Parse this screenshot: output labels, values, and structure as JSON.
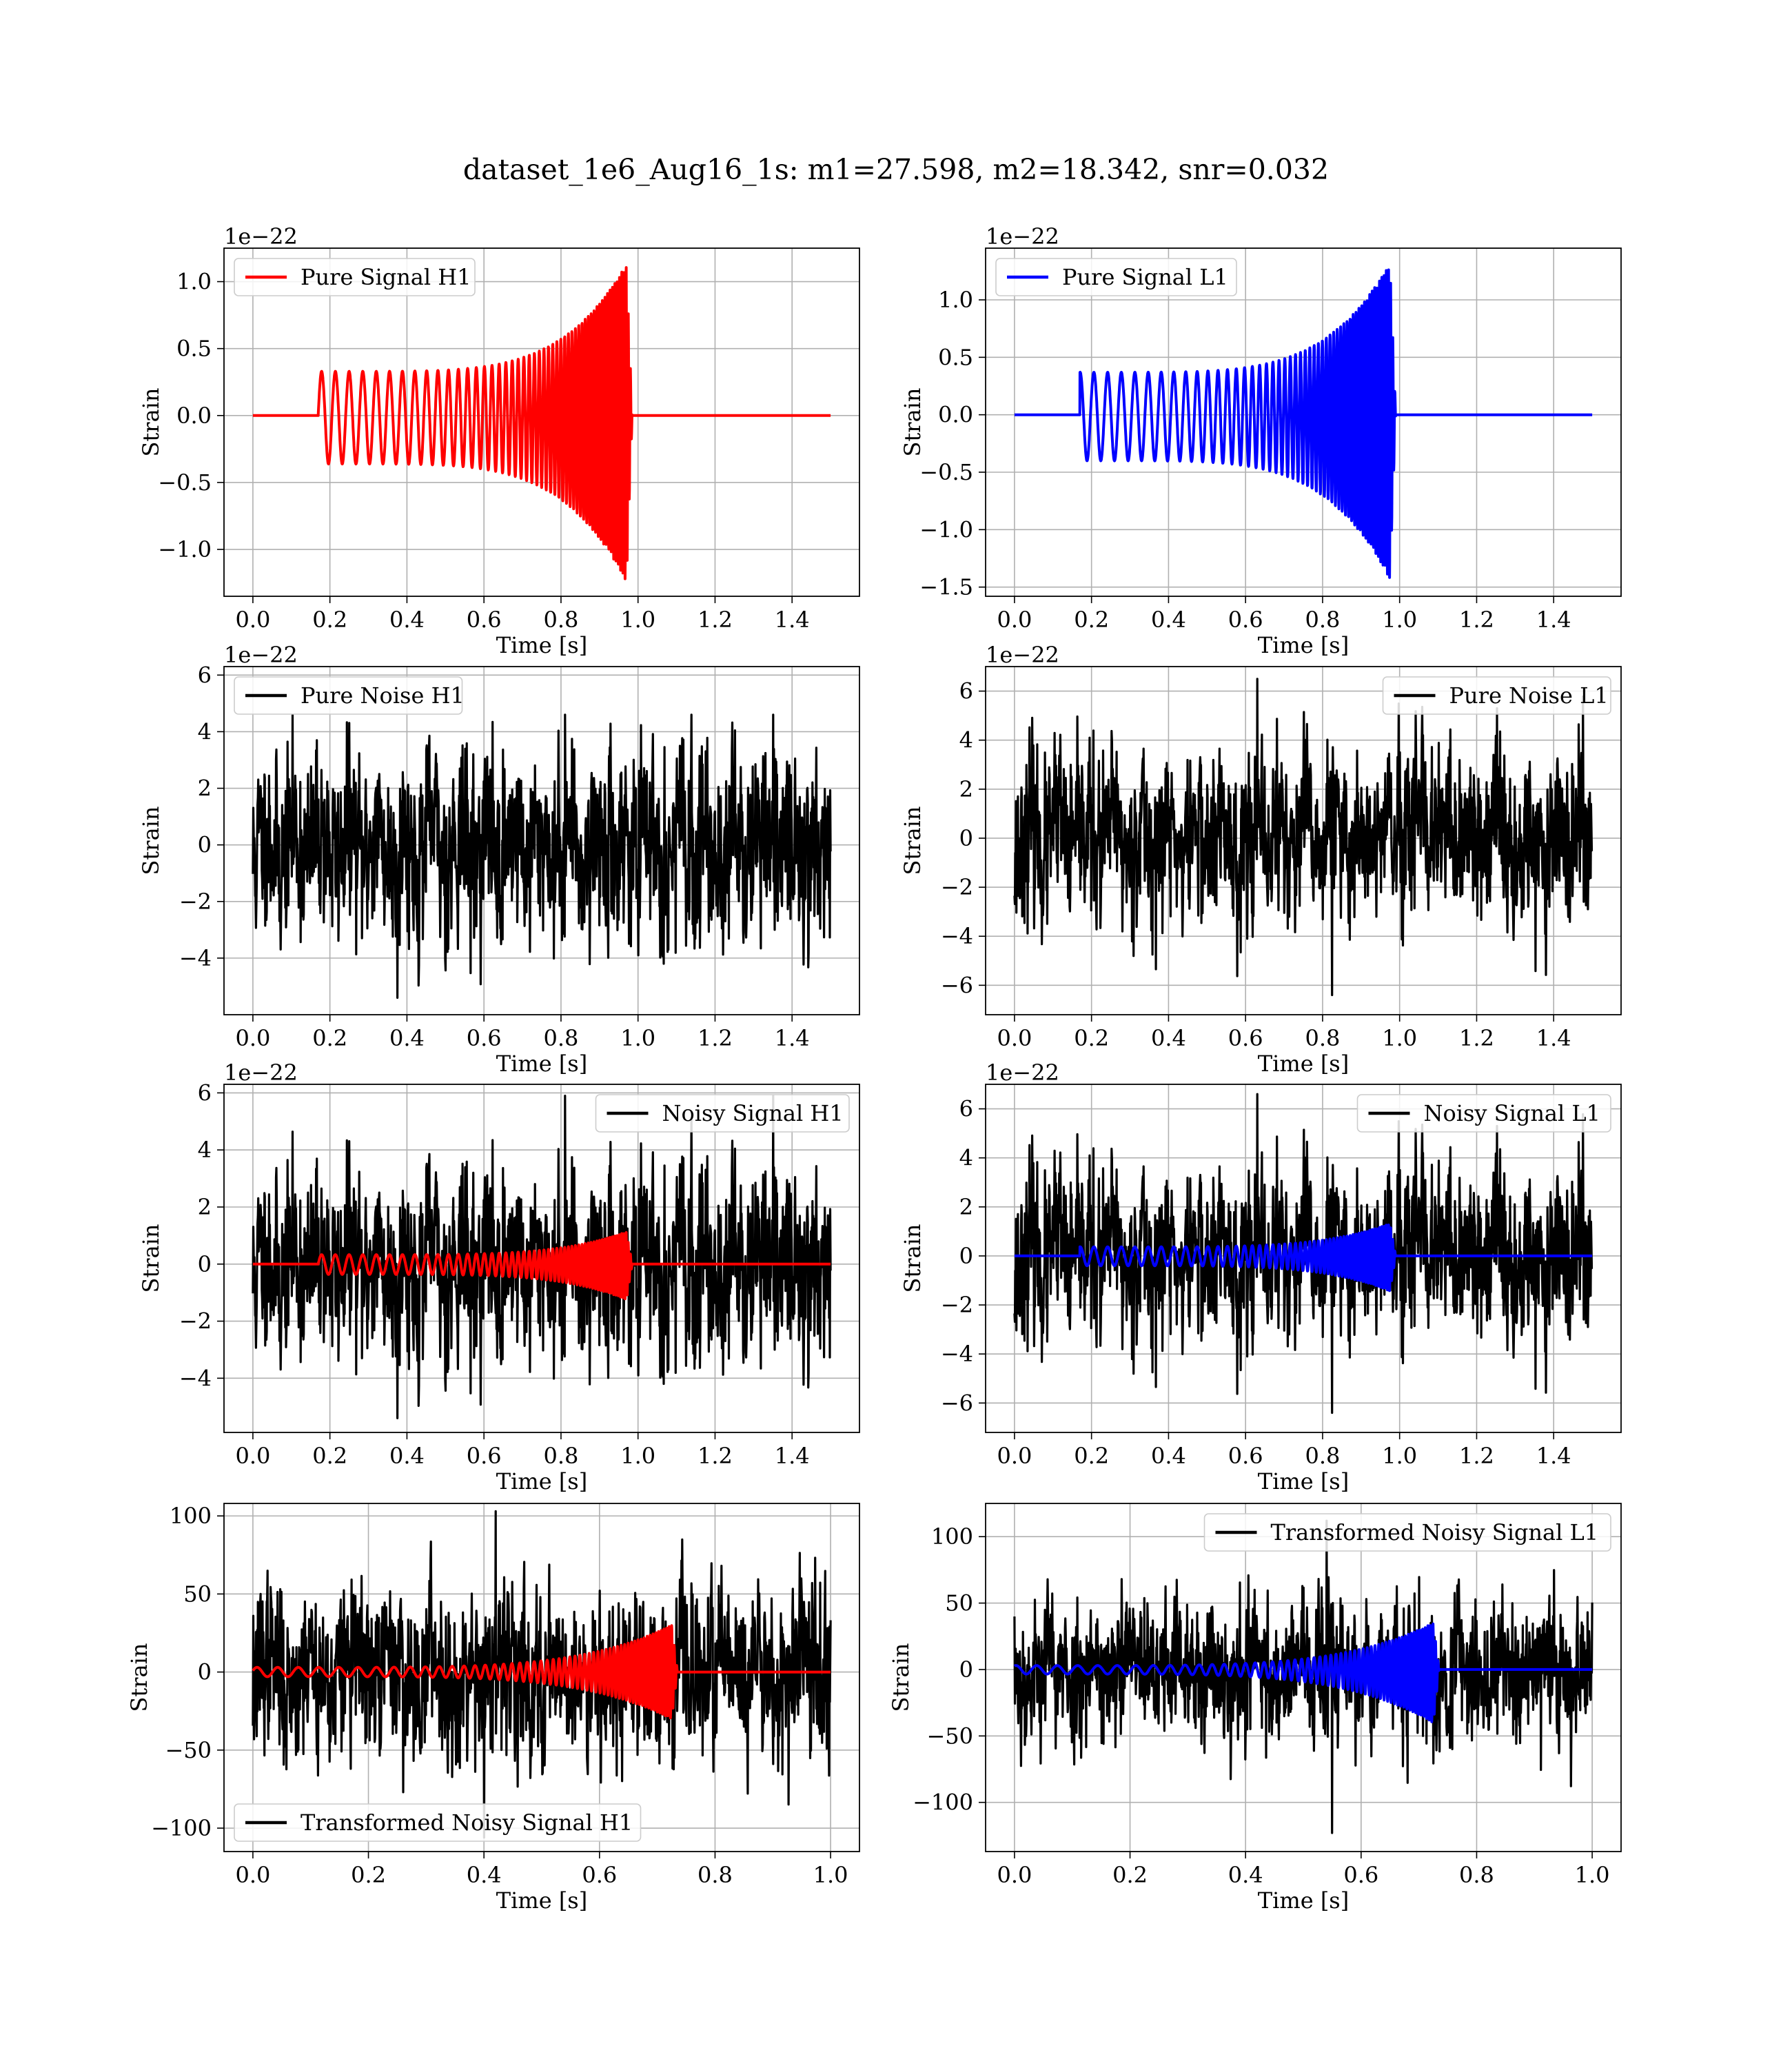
{
  "figure": {
    "title": "dataset_1e6_Aug16_1s: m1=27.598, m2=18.342, snr=0.032"
  },
  "colors": {
    "h1_signal": "#ff0000",
    "l1_signal": "#0000ff",
    "noise": "#000000",
    "grid": "#b0b0b0"
  },
  "chart_data": [
    {
      "id": "pure-signal-h1",
      "type": "line",
      "xlabel": "Time [s]",
      "ylabel": "Strain",
      "offset_text": "1e−22",
      "xlim": [
        -0.075,
        1.575
      ],
      "ylim": [
        -1.35,
        1.25
      ],
      "xticks": [
        0.0,
        0.2,
        0.4,
        0.6,
        0.8,
        1.0,
        1.2,
        1.4
      ],
      "xtick_labels": [
        "0.0",
        "0.2",
        "0.4",
        "0.6",
        "0.8",
        "1.0",
        "1.2",
        "1.4"
      ],
      "yticks": [
        1.0,
        0.5,
        0.0,
        -0.5,
        -1.0
      ],
      "ytick_labels": [
        "1.0",
        "0.5",
        "0.0",
        "−0.5",
        "−1.0"
      ],
      "legend": {
        "label": "Pure Signal H1",
        "position": "upper left",
        "color": "#ff0000"
      },
      "series": [
        {
          "name": "Pure Signal H1",
          "color": "#ff0000",
          "kind": "chirp",
          "x_range": [
            0,
            1.5
          ],
          "t_start": 0.17,
          "t_merge": 0.97,
          "t_end": 0.985,
          "amp_start": 0.33,
          "amp_peak": 1.13,
          "amp_min": -1.24,
          "f_start": 28,
          "f_end": 180,
          "phase": 0
        }
      ]
    },
    {
      "id": "pure-signal-l1",
      "type": "line",
      "xlabel": "Time [s]",
      "ylabel": "Strain",
      "offset_text": "1e−22",
      "xlim": [
        -0.075,
        1.575
      ],
      "ylim": [
        -1.58,
        1.45
      ],
      "xticks": [
        0.0,
        0.2,
        0.4,
        0.6,
        0.8,
        1.0,
        1.2,
        1.4
      ],
      "xtick_labels": [
        "0.0",
        "0.2",
        "0.4",
        "0.6",
        "0.8",
        "1.0",
        "1.2",
        "1.4"
      ],
      "yticks": [
        1.0,
        0.5,
        0.0,
        -0.5,
        -1.0,
        -1.5
      ],
      "ytick_labels": [
        "1.0",
        "0.5",
        "0.0",
        "−0.5",
        "−1.0",
        "−1.5"
      ],
      "legend": {
        "label": "Pure Signal L1",
        "position": "upper left",
        "color": "#0000ff"
      },
      "series": [
        {
          "name": "Pure Signal L1",
          "color": "#0000ff",
          "kind": "chirp",
          "x_range": [
            0,
            1.5
          ],
          "t_start": 0.17,
          "t_merge": 0.975,
          "t_end": 0.99,
          "amp_start": 0.37,
          "amp_peak": 1.32,
          "amp_min": -1.43,
          "f_start": 28,
          "f_end": 180,
          "phase": 1.4
        }
      ]
    },
    {
      "id": "pure-noise-h1",
      "type": "line",
      "xlabel": "Time [s]",
      "ylabel": "Strain",
      "offset_text": "1e−22",
      "xlim": [
        -0.075,
        1.575
      ],
      "ylim": [
        -6.0,
        6.3
      ],
      "xticks": [
        0.0,
        0.2,
        0.4,
        0.6,
        0.8,
        1.0,
        1.2,
        1.4
      ],
      "xtick_labels": [
        "0.0",
        "0.2",
        "0.4",
        "0.6",
        "0.8",
        "1.0",
        "1.2",
        "1.4"
      ],
      "yticks": [
        6,
        4,
        2,
        0,
        -2,
        -4
      ],
      "ytick_labels": [
        "6",
        "4",
        "2",
        "0",
        "−2",
        "−4"
      ],
      "legend": {
        "label": "Pure Noise H1",
        "position": "upper left",
        "color": "#000000"
      },
      "series": [
        {
          "name": "Pure Noise H1",
          "color": "#000000",
          "kind": "noise",
          "x_range": [
            0,
            1.5
          ],
          "amp": 1.7,
          "max": 4.6,
          "min": -5.4,
          "seed": 11
        }
      ]
    },
    {
      "id": "pure-noise-l1",
      "type": "line",
      "xlabel": "Time [s]",
      "ylabel": "Strain",
      "offset_text": "1e−22",
      "xlim": [
        -0.075,
        1.575
      ],
      "ylim": [
        -7.2,
        7.0
      ],
      "xticks": [
        0.0,
        0.2,
        0.4,
        0.6,
        0.8,
        1.0,
        1.2,
        1.4
      ],
      "xtick_labels": [
        "0.0",
        "0.2",
        "0.4",
        "0.6",
        "0.8",
        "1.0",
        "1.2",
        "1.4"
      ],
      "yticks": [
        6,
        4,
        2,
        0,
        -2,
        -4,
        -6
      ],
      "ytick_labels": [
        "6",
        "4",
        "2",
        "0",
        "−2",
        "−4",
        "−6"
      ],
      "legend": {
        "label": "Pure Noise L1",
        "position": "upper right",
        "color": "#000000"
      },
      "series": [
        {
          "name": "Pure Noise L1",
          "color": "#000000",
          "kind": "noise",
          "x_range": [
            0,
            1.5
          ],
          "amp": 1.8,
          "max": 6.5,
          "min": -6.4,
          "seed": 23
        }
      ]
    },
    {
      "id": "noisy-signal-h1",
      "type": "line",
      "xlabel": "Time [s]",
      "ylabel": "Strain",
      "offset_text": "1e−22",
      "xlim": [
        -0.075,
        1.575
      ],
      "ylim": [
        -5.9,
        6.3
      ],
      "xticks": [
        0.0,
        0.2,
        0.4,
        0.6,
        0.8,
        1.0,
        1.2,
        1.4
      ],
      "xtick_labels": [
        "0.0",
        "0.2",
        "0.4",
        "0.6",
        "0.8",
        "1.0",
        "1.2",
        "1.4"
      ],
      "yticks": [
        6,
        4,
        2,
        0,
        -2,
        -4
      ],
      "ytick_labels": [
        "6",
        "4",
        "2",
        "0",
        "−2",
        "−4"
      ],
      "legend": {
        "label": "Noisy Signal H1",
        "position": "upper right",
        "color": "#000000"
      },
      "series": [
        {
          "name": "Noisy Signal H1",
          "color": "#000000",
          "kind": "noise",
          "x_range": [
            0,
            1.5
          ],
          "amp": 1.7,
          "max": 5.9,
          "min": -5.4,
          "seed": 11
        },
        {
          "color": "#ff0000",
          "kind": "chirp",
          "x_range": [
            0,
            1.5
          ],
          "t_start": 0.17,
          "t_merge": 0.97,
          "t_end": 0.985,
          "amp_start": 0.33,
          "amp_peak": 1.13,
          "amp_min": -1.24,
          "f_start": 28,
          "f_end": 180,
          "phase": 0
        }
      ]
    },
    {
      "id": "noisy-signal-l1",
      "type": "line",
      "xlabel": "Time [s]",
      "ylabel": "Strain",
      "offset_text": "1e−22",
      "xlim": [
        -0.075,
        1.575
      ],
      "ylim": [
        -7.2,
        7.0
      ],
      "xticks": [
        0.0,
        0.2,
        0.4,
        0.6,
        0.8,
        1.0,
        1.2,
        1.4
      ],
      "xtick_labels": [
        "0.0",
        "0.2",
        "0.4",
        "0.6",
        "0.8",
        "1.0",
        "1.2",
        "1.4"
      ],
      "yticks": [
        6,
        4,
        2,
        0,
        -2,
        -4,
        -6
      ],
      "ytick_labels": [
        "6",
        "4",
        "2",
        "0",
        "−2",
        "−4",
        "−6"
      ],
      "legend": {
        "label": "Noisy Signal L1",
        "position": "upper right",
        "color": "#000000"
      },
      "series": [
        {
          "name": "Noisy Signal L1",
          "color": "#000000",
          "kind": "noise",
          "x_range": [
            0,
            1.5
          ],
          "amp": 1.8,
          "max": 6.6,
          "min": -6.4,
          "seed": 23
        },
        {
          "color": "#0000ff",
          "kind": "chirp",
          "x_range": [
            0,
            1.5
          ],
          "t_start": 0.17,
          "t_merge": 0.975,
          "t_end": 0.99,
          "amp_start": 0.37,
          "amp_peak": 1.32,
          "amp_min": -1.43,
          "f_start": 28,
          "f_end": 180,
          "phase": 1.4
        }
      ]
    },
    {
      "id": "transformed-noisy-signal-h1",
      "type": "line",
      "xlabel": "Time [s]",
      "ylabel": "Strain",
      "offset_text": "",
      "xlim": [
        -0.05,
        1.05
      ],
      "ylim": [
        -115,
        108
      ],
      "xticks": [
        0.0,
        0.2,
        0.4,
        0.6,
        0.8,
        1.0
      ],
      "xtick_labels": [
        "0.0",
        "0.2",
        "0.4",
        "0.6",
        "0.8",
        "1.0"
      ],
      "yticks": [
        100,
        50,
        0,
        -50,
        -100
      ],
      "ytick_labels": [
        "100",
        "50",
        "0",
        "−50",
        "−100"
      ],
      "legend": {
        "label": "Transformed Noisy Signal H1",
        "position": "lower left",
        "color": "#000000"
      },
      "series": [
        {
          "name": "Transformed Noisy Signal H1",
          "color": "#000000",
          "kind": "noise",
          "x_range": [
            0,
            1.0
          ],
          "amp": 28,
          "max": 103,
          "min": -106,
          "seed": 37
        },
        {
          "color": "#ff0000",
          "kind": "chirp",
          "x_range": [
            0,
            1.0
          ],
          "t_start": 0.0,
          "t_merge": 0.725,
          "t_end": 0.735,
          "amp_start": 3,
          "amp_peak": 30,
          "amp_min": -30,
          "f_start": 28,
          "f_end": 230,
          "phase": 0.3
        }
      ]
    },
    {
      "id": "transformed-noisy-signal-l1",
      "type": "line",
      "xlabel": "Time [s]",
      "ylabel": "Strain",
      "offset_text": "",
      "xlim": [
        -0.05,
        1.05
      ],
      "ylim": [
        -137,
        125
      ],
      "xticks": [
        0.0,
        0.2,
        0.4,
        0.6,
        0.8,
        1.0
      ],
      "xtick_labels": [
        "0.0",
        "0.2",
        "0.4",
        "0.6",
        "0.8",
        "1.0"
      ],
      "yticks": [
        100,
        50,
        0,
        -50,
        -100
      ],
      "ytick_labels": [
        "100",
        "50",
        "0",
        "−50",
        "−100"
      ],
      "legend": {
        "label": "Transformed Noisy Signal L1",
        "position": "upper right",
        "color": "#000000"
      },
      "series": [
        {
          "name": "Transformed Noisy Signal L1",
          "color": "#000000",
          "kind": "noise",
          "x_range": [
            0,
            1.0
          ],
          "amp": 28,
          "max": 112,
          "min": -123,
          "seed": 53
        },
        {
          "color": "#0000ff",
          "kind": "chirp",
          "x_range": [
            0,
            1.0
          ],
          "t_start": 0.0,
          "t_merge": 0.725,
          "t_end": 0.735,
          "amp_start": 3,
          "amp_peak": 35,
          "amp_min": -40,
          "f_start": 28,
          "f_end": 230,
          "phase": 1.1
        }
      ]
    }
  ]
}
